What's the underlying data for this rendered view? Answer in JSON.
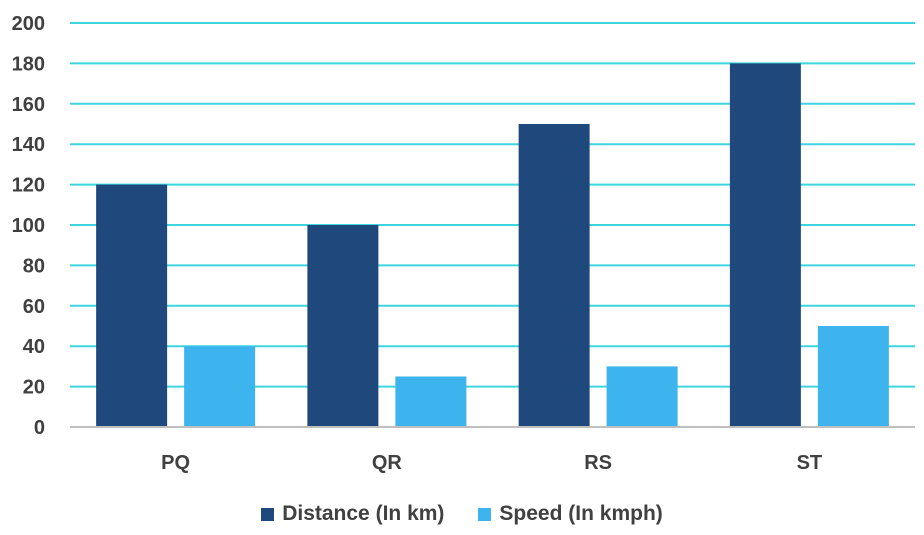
{
  "chart_data": {
    "type": "bar",
    "title": "",
    "xlabel": "",
    "ylabel": "",
    "categories": [
      "PQ",
      "QR",
      "RS",
      "ST"
    ],
    "ylim": [
      0,
      200
    ],
    "yticks": [
      0,
      20,
      40,
      60,
      80,
      100,
      120,
      140,
      160,
      180,
      200
    ],
    "grid": true,
    "legend_position": "bottom",
    "series": [
      {
        "name": "Distance (In km)",
        "values": [
          120,
          100,
          150,
          180
        ],
        "color": "#1F497D"
      },
      {
        "name": "Speed (In kmph)",
        "values": [
          40,
          25,
          30,
          50
        ],
        "color": "#3EB4EE"
      }
    ],
    "gridline_color": "#3DD6E0",
    "axis_color": "#BFBFBF"
  }
}
